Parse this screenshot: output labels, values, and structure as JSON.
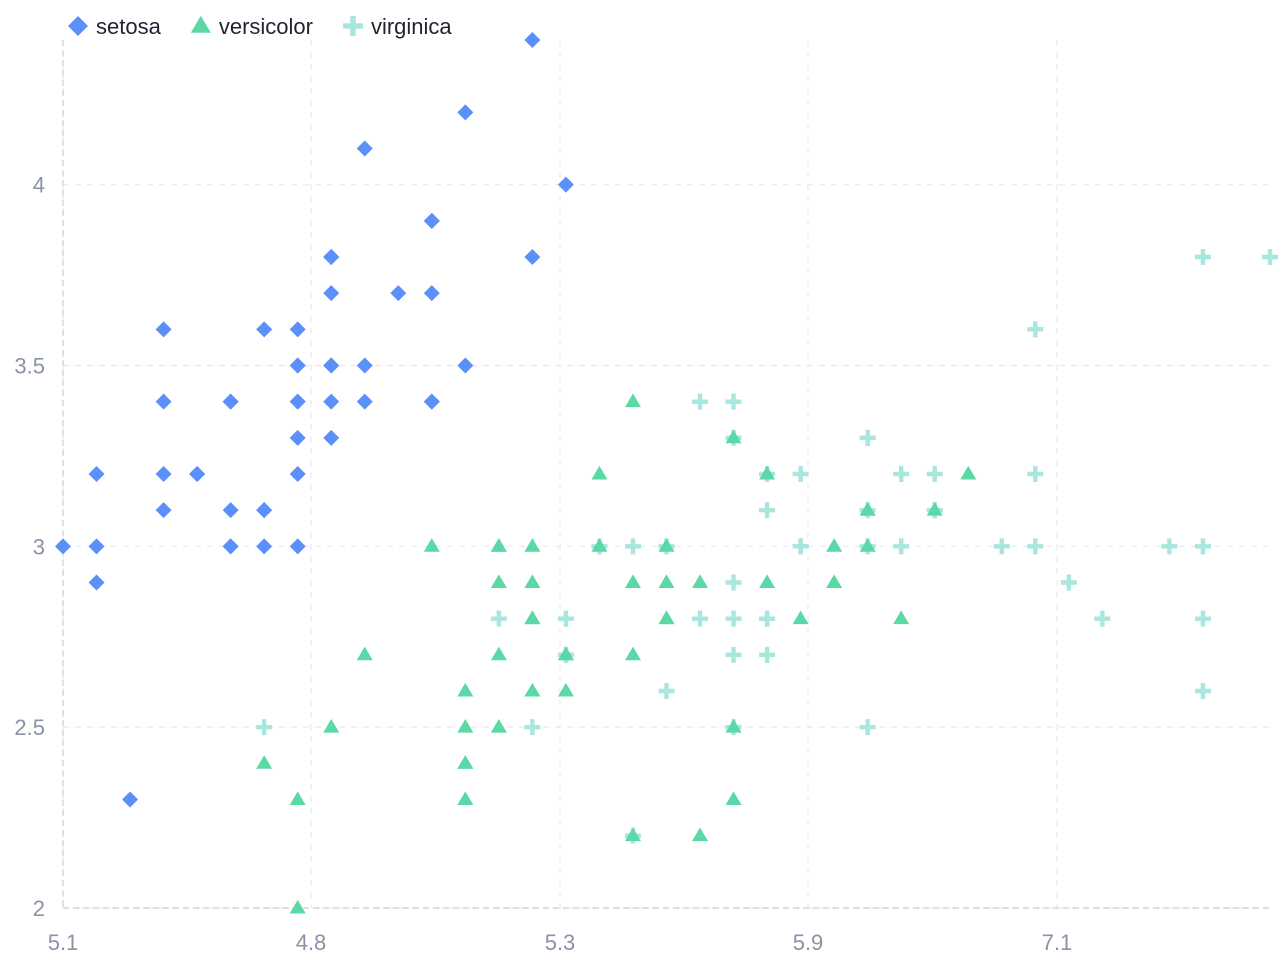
{
  "chart_data": {
    "type": "scatter",
    "title": "",
    "xlabel": "",
    "ylabel": "",
    "x_ticks": [
      "5.1",
      "4.8",
      "5.3",
      "5.9",
      "7.1"
    ],
    "y_ticks": [
      "2",
      "2.5",
      "3",
      "3.5",
      "4"
    ],
    "ylim": [
      2,
      4.4
    ],
    "grid": true,
    "legend_position": "top-left",
    "colors": {
      "setosa": "#5b8ff9",
      "versicolor": "#5ad8a6",
      "virginica": "#a8e6de"
    },
    "legend": [
      {
        "name": "setosa",
        "symbol": "diamond"
      },
      {
        "name": "versicolor",
        "symbol": "triangle"
      },
      {
        "name": "virginica",
        "symbol": "plus"
      }
    ],
    "series": [
      {
        "name": "setosa",
        "symbol": "diamond",
        "points": [
          [
            5.1,
            3.5
          ],
          [
            4.9,
            3.0
          ],
          [
            4.7,
            3.2
          ],
          [
            4.6,
            3.1
          ],
          [
            5.0,
            3.6
          ],
          [
            5.4,
            3.9
          ],
          [
            4.6,
            3.4
          ],
          [
            5.0,
            3.4
          ],
          [
            4.4,
            2.9
          ],
          [
            4.9,
            3.1
          ],
          [
            5.4,
            3.7
          ],
          [
            4.8,
            3.4
          ],
          [
            4.8,
            3.0
          ],
          [
            4.3,
            3.0
          ],
          [
            5.8,
            4.0
          ],
          [
            5.7,
            4.4
          ],
          [
            5.4,
            3.9
          ],
          [
            5.1,
            3.5
          ],
          [
            5.7,
            3.8
          ],
          [
            5.1,
            3.8
          ],
          [
            5.4,
            3.4
          ],
          [
            5.1,
            3.7
          ],
          [
            4.6,
            3.6
          ],
          [
            5.1,
            3.3
          ],
          [
            4.8,
            3.4
          ],
          [
            5.0,
            3.0
          ],
          [
            5.0,
            3.4
          ],
          [
            5.2,
            3.5
          ],
          [
            5.2,
            3.4
          ],
          [
            4.7,
            3.2
          ],
          [
            4.8,
            3.1
          ],
          [
            5.4,
            3.4
          ],
          [
            5.2,
            4.1
          ],
          [
            5.5,
            4.2
          ],
          [
            4.9,
            3.1
          ],
          [
            5.0,
            3.2
          ],
          [
            5.5,
            3.5
          ],
          [
            4.9,
            3.6
          ],
          [
            4.4,
            3.0
          ],
          [
            5.1,
            3.4
          ],
          [
            5.0,
            3.5
          ],
          [
            4.5,
            2.3
          ],
          [
            4.4,
            3.2
          ],
          [
            5.0,
            3.5
          ],
          [
            5.1,
            3.8
          ],
          [
            4.8,
            3.0
          ],
          [
            5.1,
            3.8
          ],
          [
            4.6,
            3.2
          ],
          [
            5.3,
            3.7
          ],
          [
            5.0,
            3.3
          ]
        ]
      },
      {
        "name": "versicolor",
        "symbol": "triangle",
        "points": [
          [
            7.0,
            3.2
          ],
          [
            6.4,
            3.2
          ],
          [
            6.9,
            3.1
          ],
          [
            5.5,
            2.3
          ],
          [
            6.5,
            2.8
          ],
          [
            5.7,
            2.8
          ],
          [
            6.3,
            3.3
          ],
          [
            4.9,
            2.4
          ],
          [
            6.6,
            2.9
          ],
          [
            5.2,
            2.7
          ],
          [
            5.0,
            2.0
          ],
          [
            5.9,
            3.0
          ],
          [
            6.0,
            2.2
          ],
          [
            6.1,
            2.9
          ],
          [
            5.6,
            2.9
          ],
          [
            6.7,
            3.1
          ],
          [
            5.6,
            3.0
          ],
          [
            5.8,
            2.7
          ],
          [
            6.2,
            2.2
          ],
          [
            5.6,
            2.5
          ],
          [
            5.9,
            3.2
          ],
          [
            6.1,
            2.8
          ],
          [
            6.3,
            2.5
          ],
          [
            6.1,
            2.8
          ],
          [
            6.4,
            2.9
          ],
          [
            6.6,
            3.0
          ],
          [
            6.8,
            2.8
          ],
          [
            6.7,
            3.0
          ],
          [
            6.0,
            2.9
          ],
          [
            5.7,
            2.6
          ],
          [
            5.5,
            2.4
          ],
          [
            5.5,
            2.4
          ],
          [
            5.8,
            2.7
          ],
          [
            6.0,
            2.7
          ],
          [
            5.4,
            3.0
          ],
          [
            6.0,
            3.4
          ],
          [
            6.7,
            3.1
          ],
          [
            6.3,
            2.3
          ],
          [
            5.6,
            3.0
          ],
          [
            5.5,
            2.5
          ],
          [
            5.5,
            2.6
          ],
          [
            6.1,
            3.0
          ],
          [
            5.8,
            2.6
          ],
          [
            5.0,
            2.3
          ],
          [
            5.6,
            2.7
          ],
          [
            5.7,
            3.0
          ],
          [
            5.7,
            2.9
          ],
          [
            6.2,
            2.9
          ],
          [
            5.1,
            2.5
          ],
          [
            5.7,
            2.8
          ]
        ]
      },
      {
        "name": "virginica",
        "symbol": "plus",
        "points": [
          [
            6.3,
            3.3
          ],
          [
            5.8,
            2.7
          ],
          [
            7.1,
            3.0
          ],
          [
            6.3,
            2.9
          ],
          [
            6.5,
            3.0
          ],
          [
            7.6,
            3.0
          ],
          [
            4.9,
            2.5
          ],
          [
            7.3,
            2.9
          ],
          [
            6.7,
            2.5
          ],
          [
            7.2,
            3.6
          ],
          [
            6.5,
            3.2
          ],
          [
            6.4,
            2.7
          ],
          [
            6.8,
            3.0
          ],
          [
            5.7,
            2.5
          ],
          [
            5.8,
            2.8
          ],
          [
            6.4,
            3.2
          ],
          [
            6.5,
            3.0
          ],
          [
            7.7,
            3.8
          ],
          [
            7.7,
            2.6
          ],
          [
            6.0,
            2.2
          ],
          [
            6.9,
            3.2
          ],
          [
            5.6,
            2.8
          ],
          [
            7.7,
            2.8
          ],
          [
            6.3,
            2.7
          ],
          [
            6.7,
            3.3
          ],
          [
            7.2,
            3.2
          ],
          [
            6.2,
            2.8
          ],
          [
            6.1,
            3.0
          ],
          [
            6.4,
            2.8
          ],
          [
            7.2,
            3.0
          ],
          [
            7.4,
            2.8
          ],
          [
            7.9,
            3.8
          ],
          [
            6.4,
            2.8
          ],
          [
            6.3,
            2.8
          ],
          [
            6.1,
            2.6
          ],
          [
            7.7,
            3.0
          ],
          [
            6.3,
            3.4
          ],
          [
            6.4,
            3.1
          ],
          [
            6.0,
            3.0
          ],
          [
            6.9,
            3.1
          ],
          [
            6.7,
            3.1
          ],
          [
            6.9,
            3.1
          ],
          [
            5.8,
            2.7
          ],
          [
            6.8,
            3.2
          ],
          [
            6.7,
            3.3
          ],
          [
            6.7,
            3.0
          ],
          [
            6.3,
            2.5
          ],
          [
            6.5,
            3.0
          ],
          [
            6.2,
            3.4
          ],
          [
            5.9,
            3.0
          ]
        ]
      }
    ]
  }
}
